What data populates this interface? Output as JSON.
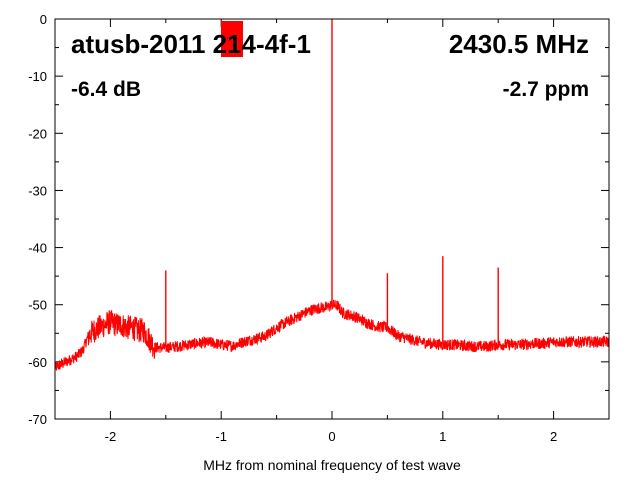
{
  "chart_data": {
    "type": "line",
    "title": "atusb-2011 214-4f-1",
    "frequency_label": "2430.5 MHz",
    "power_label": "-6.4 dB",
    "ppm_label": "-2.7 ppm",
    "xlabel": "MHz from nominal frequency of test wave",
    "ylabel": "",
    "xlim": [
      -2.5,
      2.5
    ],
    "ylim": [
      -70,
      0
    ],
    "x_ticks": [
      -2,
      -1,
      0,
      1,
      2
    ],
    "y_ticks": [
      0,
      -10,
      -20,
      -30,
      -40,
      -50,
      -60,
      -70
    ],
    "grid": false,
    "series": [
      {
        "color": "#ff0000",
        "x": [
          -2.5,
          -2.4,
          -2.3,
          -2.25,
          -2.2,
          -2.15,
          -2.1,
          -2.05,
          -2.0,
          -1.95,
          -1.9,
          -1.85,
          -1.8,
          -1.75,
          -1.7,
          -1.65,
          -1.6,
          -1.5,
          -1.4,
          -1.3,
          -1.2,
          -1.1,
          -1.0,
          -0.9,
          -0.8,
          -0.7,
          -0.6,
          -0.5,
          -0.4,
          -0.3,
          -0.2,
          -0.1,
          -0.05,
          0.0,
          0.05,
          0.1,
          0.2,
          0.3,
          0.4,
          0.5,
          0.6,
          0.7,
          0.8,
          0.9,
          1.0,
          1.1,
          1.2,
          1.3,
          1.4,
          1.5,
          1.6,
          1.7,
          1.8,
          1.9,
          2.0,
          2.1,
          2.2,
          2.3,
          2.4,
          2.5
        ],
        "values": [
          -61.0,
          -60.0,
          -59.0,
          -58.0,
          -55.5,
          -54.5,
          -54.0,
          -53.5,
          -53.0,
          -53.5,
          -53.5,
          -54.0,
          -54.0,
          -54.5,
          -54.5,
          -56.0,
          -57.5,
          -57.5,
          -57.3,
          -57.0,
          -56.7,
          -56.6,
          -57.0,
          -57.2,
          -56.5,
          -56.0,
          -55.5,
          -54.0,
          -53.0,
          -52.0,
          -51.0,
          -50.5,
          -50.5,
          -50.0,
          -50.2,
          -51.5,
          -52.0,
          -53.0,
          -53.8,
          -54.0,
          -55.5,
          -56.0,
          -56.5,
          -56.8,
          -57.0,
          -57.0,
          -57.2,
          -57.3,
          -57.3,
          -57.0,
          -57.0,
          -57.0,
          -56.8,
          -56.8,
          -56.5,
          -56.5,
          -56.5,
          -56.5,
          -56.5,
          -56.5
        ]
      }
    ],
    "spurs": [
      {
        "x": -1.5,
        "y": -44.0
      },
      {
        "x": 0.0,
        "y": 0.0
      },
      {
        "x": 0.5,
        "y": -44.5
      },
      {
        "x": 1.0,
        "y": -41.5
      },
      {
        "x": 1.5,
        "y": -43.5
      }
    ],
    "marker_color": "#ff0000"
  }
}
